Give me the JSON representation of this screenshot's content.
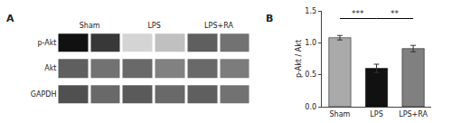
{
  "chart_data": [
    {
      "type": "heatmap",
      "title": "A",
      "categories": [
        "Sham",
        null,
        "LPS",
        null,
        "LPS+RA",
        null
      ],
      "rows": [
        "p-Akt",
        "Akt",
        "GAPDH"
      ],
      "cells": [
        [
          0.88,
          0.8,
          0.48,
          0.52,
          0.72,
          0.68
        ],
        [
          0.72,
          0.68,
          0.7,
          0.65,
          0.7,
          0.66
        ],
        [
          0.75,
          0.7,
          0.73,
          0.7,
          0.72,
          0.68
        ]
      ],
      "grid": false
    },
    {
      "type": "bar",
      "title": "B",
      "categories": [
        "Sham",
        "LPS",
        "LPS+RA"
      ],
      "values": [
        1.08,
        0.6,
        0.91
      ],
      "errors": [
        0.035,
        0.065,
        0.05
      ],
      "colors": [
        "#aaaaaa",
        "#111111",
        "#808080"
      ],
      "ylabel": "p-Akt / Akt",
      "ylim": [
        0,
        1.5
      ],
      "yticks": [
        {
          "value": 0.0,
          "label": "0.0"
        },
        0.5,
        {
          "value": 1.0,
          "label": "1.0"
        },
        1.5
      ],
      "grid": false,
      "annotations": [
        {
          "text": "***",
          "from": "Sham",
          "to": "LPS",
          "y": 1.38
        },
        {
          "text": "**",
          "from": "LPS",
          "to": "LPS+RA",
          "y": 1.38
        }
      ]
    }
  ]
}
